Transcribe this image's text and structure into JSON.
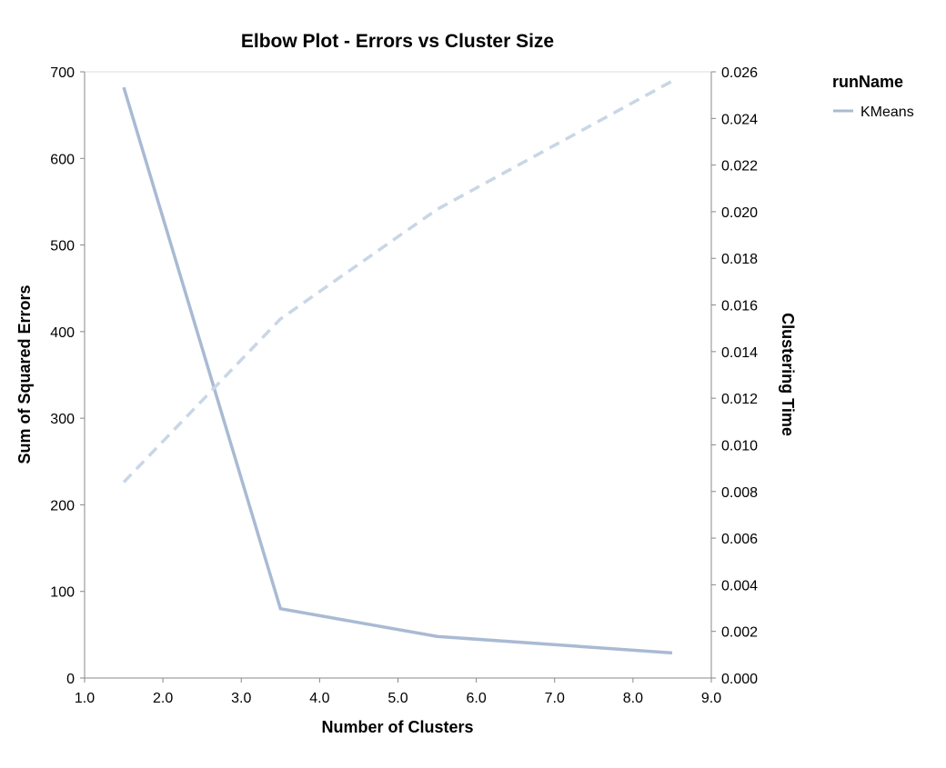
{
  "chart_data": {
    "type": "line",
    "title": "Elbow Plot - Errors vs Cluster Size",
    "xlabel": "Number of Clusters",
    "ylabel": "Sum of Squared Errors",
    "y2label": "Clustering Time",
    "xlim": [
      1.0,
      9.0
    ],
    "ylim": [
      0,
      700
    ],
    "y2lim": [
      0,
      0.026
    ],
    "x_ticks": [
      "1.0",
      "2.0",
      "3.0",
      "4.0",
      "5.0",
      "6.0",
      "7.0",
      "8.0",
      "9.0"
    ],
    "y_ticks": [
      "0",
      "100",
      "200",
      "300",
      "400",
      "500",
      "600",
      "700"
    ],
    "y2_ticks": [
      "0.000",
      "0.002",
      "0.004",
      "0.006",
      "0.008",
      "0.010",
      "0.012",
      "0.014",
      "0.016",
      "0.018",
      "0.020",
      "0.022",
      "0.024",
      "0.026"
    ],
    "grid": false,
    "legend": {
      "title": "runName",
      "entries": [
        "KMeans"
      ],
      "placement": "right"
    },
    "x": [
      1.5,
      3.5,
      5.5,
      8.5
    ],
    "series": [
      {
        "name": "KMeans",
        "axis": "left",
        "style": "solid",
        "color": "#a9bad3",
        "values": [
          682,
          80,
          48,
          29
        ]
      },
      {
        "axis": "right",
        "style": "dashed",
        "color": "#c9d6e6",
        "values": [
          0.0084,
          0.0154,
          0.0201,
          0.0256
        ]
      }
    ]
  }
}
